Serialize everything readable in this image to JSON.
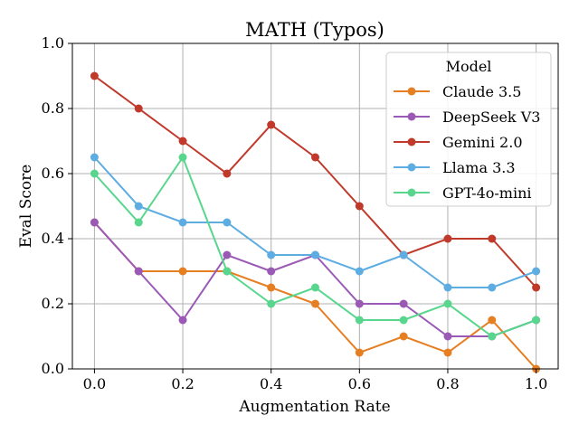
{
  "chart_data": {
    "type": "line",
    "title": "MATH (Typos)",
    "xlabel": "Augmentation Rate",
    "ylabel": "Eval Score",
    "xlim": [
      -0.05,
      1.05
    ],
    "ylim": [
      0.0,
      1.0
    ],
    "xticks": [
      0.0,
      0.2,
      0.4,
      0.6,
      0.8,
      1.0
    ],
    "xtick_labels": [
      "0.0",
      "0.2",
      "0.4",
      "0.6",
      "0.8",
      "1.0"
    ],
    "yticks": [
      0.0,
      0.2,
      0.4,
      0.6,
      0.8,
      1.0
    ],
    "ytick_labels": [
      "0.0",
      "0.2",
      "0.4",
      "0.6",
      "0.8",
      "1.0"
    ],
    "grid": true,
    "legend": {
      "title": "Model",
      "placement": "top-right"
    },
    "x": [
      0.0,
      0.1,
      0.2,
      0.3,
      0.4,
      0.5,
      0.6,
      0.7,
      0.8,
      0.9,
      1.0
    ],
    "series": [
      {
        "name": "Claude 3.5",
        "color": "#e67e22",
        "values": [
          0.45,
          0.3,
          0.3,
          0.3,
          0.25,
          0.2,
          0.05,
          0.1,
          0.05,
          0.15,
          0.0
        ]
      },
      {
        "name": "DeepSeek V3",
        "color": "#9b59b6",
        "values": [
          0.45,
          0.3,
          0.15,
          0.35,
          0.3,
          0.35,
          0.2,
          0.2,
          0.1,
          0.1,
          0.15
        ]
      },
      {
        "name": "Gemini 2.0",
        "color": "#c0392b",
        "values": [
          0.9,
          0.8,
          0.7,
          0.6,
          0.75,
          0.65,
          0.5,
          0.35,
          0.4,
          0.4,
          0.25
        ]
      },
      {
        "name": "Llama 3.3",
        "color": "#5dade2",
        "values": [
          0.65,
          0.5,
          0.45,
          0.45,
          0.35,
          0.35,
          0.3,
          0.35,
          0.25,
          0.25,
          0.3
        ]
      },
      {
        "name": "GPT-4o-mini",
        "color": "#58d68d",
        "values": [
          0.6,
          0.45,
          0.65,
          0.3,
          0.2,
          0.25,
          0.15,
          0.15,
          0.2,
          0.1,
          0.15
        ]
      }
    ]
  }
}
